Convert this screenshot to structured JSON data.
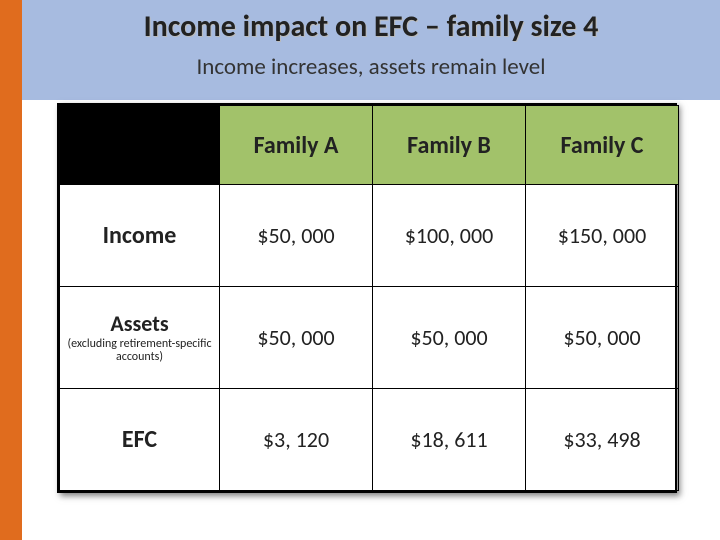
{
  "colors": {
    "accent_orange": "#e06c1e",
    "header_blue": "#a7bbe0",
    "header_green": "#a2c26a",
    "black": "#000000",
    "text": "#222222",
    "white": "#ffffff"
  },
  "title": "Income impact on EFC – family size 4",
  "subtitle": "Income increases, assets remain level",
  "table": {
    "columns": [
      "Family A",
      "Family B",
      "Family C"
    ],
    "rows": [
      {
        "label": "Income",
        "sublabel": null,
        "values": [
          "$50, 000",
          "$100, 000",
          "$150, 000"
        ]
      },
      {
        "label": "Assets",
        "sublabel": "(excluding retirement-specific accounts)",
        "values": [
          "$50, 000",
          "$50, 000",
          "$50, 000"
        ]
      },
      {
        "label": "EFC",
        "sublabel": null,
        "values": [
          "$3, 120",
          "$18, 611",
          "$33, 498"
        ]
      }
    ]
  }
}
